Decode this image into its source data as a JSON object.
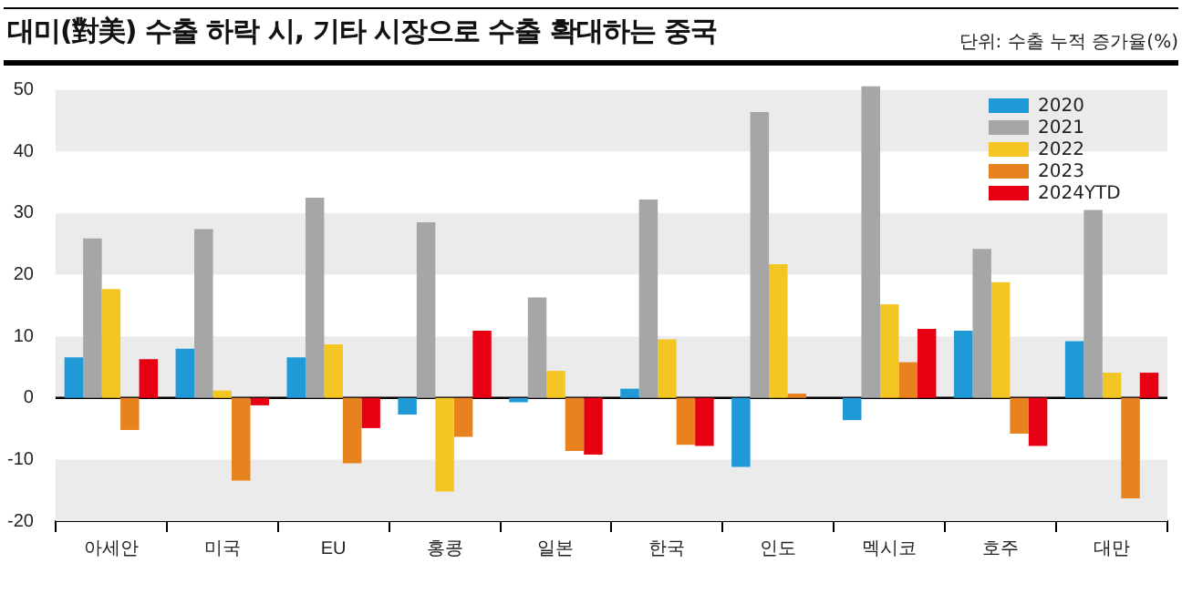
{
  "chart_data": {
    "type": "bar",
    "title": "대미(對美) 수출 하락 시, 기타 시장으로 수출 확대하는 중국",
    "subtitle": "단위: 수출 누적 증가율(%)",
    "categories": [
      "아세안",
      "미국",
      "EU",
      "홍콩",
      "일본",
      "한국",
      "인도",
      "멕시코",
      "호주",
      "대만"
    ],
    "series": [
      {
        "name": "2020",
        "color": "#1f9ad6",
        "values": [
          6.6,
          8.0,
          6.6,
          -2.7,
          -0.7,
          1.5,
          -11.2,
          -3.6,
          10.9,
          9.2
        ]
      },
      {
        "name": "2021",
        "color": "#a6a6a6",
        "values": [
          25.9,
          27.4,
          32.5,
          28.5,
          16.3,
          32.2,
          46.4,
          50.6,
          24.2,
          30.5
        ]
      },
      {
        "name": "2022",
        "color": "#f4c623",
        "values": [
          17.7,
          1.2,
          8.7,
          -15.2,
          4.4,
          9.5,
          21.7,
          15.2,
          18.8,
          4.1
        ]
      },
      {
        "name": "2023",
        "color": "#e8821e",
        "values": [
          -5.2,
          -13.4,
          -10.6,
          -6.3,
          -8.6,
          -7.6,
          0.7,
          5.8,
          -5.8,
          -16.3
        ]
      },
      {
        "name": "2024YTD",
        "color": "#e60012",
        "values": [
          6.3,
          -1.2,
          -4.9,
          10.9,
          -9.2,
          -7.8,
          null,
          11.2,
          -7.8,
          4.1
        ]
      }
    ],
    "ylim": [
      -20,
      51
    ],
    "yticks": [
      -20,
      -10,
      0,
      10,
      20,
      30,
      40,
      50
    ],
    "grid": true,
    "legend": "top right"
  }
}
